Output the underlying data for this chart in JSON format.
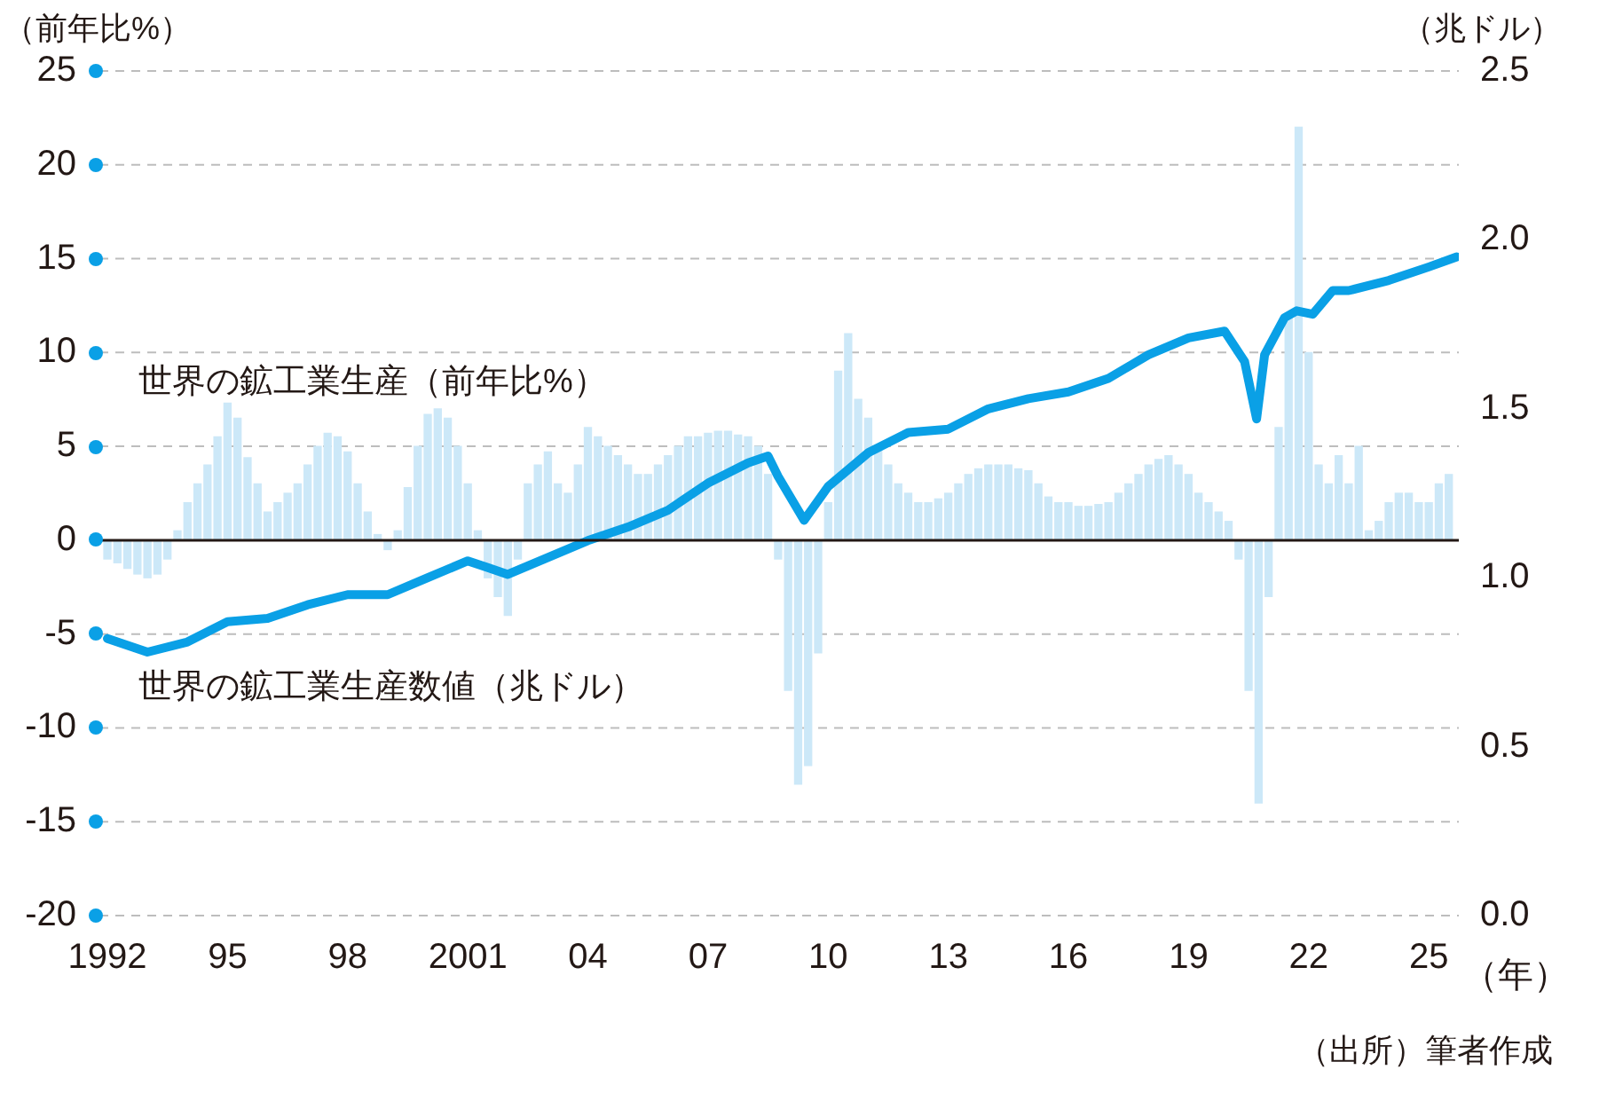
{
  "chart_data": {
    "type": "bar",
    "xlabel": "（年）",
    "ylabel": "（前年比%）",
    "y2label": "（兆ドル）",
    "annotations": [
      "（出所）筆者作成"
    ],
    "xlim": [
      1991.8,
      2025.75
    ],
    "xticks": [
      {
        "value": 1992,
        "label": "1992"
      },
      {
        "value": 1995,
        "label": "95"
      },
      {
        "value": 1998,
        "label": "98"
      },
      {
        "value": 2001,
        "label": "2001"
      },
      {
        "value": 2004,
        "label": "04"
      },
      {
        "value": 2007,
        "label": "07"
      },
      {
        "value": 2010,
        "label": "10"
      },
      {
        "value": 2013,
        "label": "13"
      },
      {
        "value": 2016,
        "label": "16"
      },
      {
        "value": 2019,
        "label": "19"
      },
      {
        "value": 2022,
        "label": "22"
      },
      {
        "value": 2025,
        "label": "25"
      }
    ],
    "ylim": [
      -20,
      25
    ],
    "yticks": [
      -20,
      -15,
      -10,
      -5,
      0,
      5,
      10,
      15,
      20,
      25
    ],
    "y2lim": [
      0,
      2.5
    ],
    "y2ticks": [
      {
        "value": 0,
        "label": "0.0"
      },
      {
        "value": 0.5,
        "label": "0.5"
      },
      {
        "value": 1,
        "label": "1.0"
      },
      {
        "value": 1.5,
        "label": "1.5"
      },
      {
        "value": 2,
        "label": "2.0"
      },
      {
        "value": 2.5,
        "label": "2.5"
      }
    ],
    "grid": "y",
    "ref_lines": [
      {
        "axis": "y",
        "value": 0,
        "color": "#231815"
      }
    ],
    "series": [
      {
        "name": "世界の鉱工業生産（前年比%）",
        "color": "#cce8f8",
        "x": [
          1992,
          1992.25,
          1992.5,
          1992.75,
          1993,
          1993.25,
          1993.5,
          1993.75,
          1994,
          1994.25,
          1994.5,
          1994.75,
          1995,
          1995.25,
          1995.5,
          1995.75,
          1996,
          1996.25,
          1996.5,
          1996.75,
          1997,
          1997.25,
          1997.5,
          1997.75,
          1998,
          1998.25,
          1998.5,
          1998.75,
          1999,
          1999.25,
          1999.5,
          1999.75,
          2000,
          2000.25,
          2000.5,
          2000.75,
          2001,
          2001.25,
          2001.5,
          2001.75,
          2002,
          2002.25,
          2002.5,
          2002.75,
          2003,
          2003.25,
          2003.5,
          2003.75,
          2004,
          2004.25,
          2004.5,
          2004.75,
          2005,
          2005.25,
          2005.5,
          2005.75,
          2006,
          2006.25,
          2006.5,
          2006.75,
          2007,
          2007.25,
          2007.5,
          2007.75,
          2008,
          2008.25,
          2008.5,
          2008.75,
          2009,
          2009.25,
          2009.5,
          2009.75,
          2010,
          2010.25,
          2010.5,
          2010.75,
          2011,
          2011.25,
          2011.5,
          2011.75,
          2012,
          2012.25,
          2012.5,
          2012.75,
          2013,
          2013.25,
          2013.5,
          2013.75,
          2014,
          2014.25,
          2014.5,
          2014.75,
          2015,
          2015.25,
          2015.5,
          2015.75,
          2016,
          2016.25,
          2016.5,
          2016.75,
          2017,
          2017.25,
          2017.5,
          2017.75,
          2018,
          2018.25,
          2018.5,
          2018.75,
          2019,
          2019.25,
          2019.5,
          2019.75,
          2020,
          2020.25,
          2020.5,
          2020.75,
          2021,
          2021.25,
          2021.5,
          2021.75,
          2022,
          2022.25,
          2022.5,
          2022.75,
          2023,
          2023.25,
          2023.5,
          2023.75,
          2024,
          2024.25,
          2024.5,
          2024.75,
          2025,
          2025.25,
          2025.5
        ],
        "values": [
          -1,
          -1.2,
          -1.5,
          -1.8,
          -2,
          -1.8,
          -1,
          0.5,
          2,
          3,
          4,
          5.5,
          7.3,
          6.5,
          4.4,
          3,
          1.5,
          2,
          2.5,
          3,
          4,
          5,
          5.7,
          5.5,
          4.7,
          3,
          1.5,
          0.3,
          -0.5,
          0.5,
          2.8,
          5,
          6.7,
          7,
          6.5,
          5,
          3,
          0.5,
          -2,
          -3,
          -4,
          -1,
          3,
          4,
          4.7,
          3,
          2.5,
          4,
          6,
          5.5,
          5,
          4.5,
          4,
          3.5,
          3.5,
          4,
          4.5,
          5,
          5.5,
          5.5,
          5.7,
          5.8,
          5.8,
          5.6,
          5.5,
          5,
          3.5,
          -1,
          -8,
          -13,
          -12,
          -6,
          2,
          9,
          11,
          7.5,
          6.5,
          5,
          4,
          3,
          2.5,
          2,
          2,
          2.2,
          2.5,
          3,
          3.5,
          3.8,
          4,
          4,
          4,
          3.8,
          3.7,
          3,
          2.3,
          2,
          2,
          1.8,
          1.8,
          1.9,
          2,
          2.5,
          3,
          3.5,
          4,
          4.3,
          4.5,
          4,
          3.5,
          2.5,
          2,
          1.5,
          1,
          -1,
          -8,
          -14,
          -3,
          6,
          12,
          22,
          10,
          4,
          3,
          4.5,
          3,
          5,
          0.5,
          1,
          2,
          2.5,
          2.5,
          2,
          2,
          3,
          3.5
        ]
      },
      {
        "name": "世界の鉱工業生産数値（兆ドル）",
        "type": "line",
        "axis": "y2",
        "color": "#0aa0e6",
        "x": [
          1992,
          1993,
          1994,
          1995,
          1996,
          1997,
          1998,
          1999,
          2000,
          2001,
          2001.5,
          2002,
          2003,
          2004,
          2005,
          2006,
          2007,
          2008,
          2008.5,
          2008.75,
          2009.4,
          2010,
          2011,
          2012,
          2013,
          2014,
          2015,
          2016,
          2017,
          2018,
          2019,
          2019.9,
          2020.4,
          2020.7,
          2020.9,
          2021.4,
          2021.7,
          2022.1,
          2022.6,
          2023,
          2024,
          2025,
          2025.7
        ],
        "values": [
          0.82,
          0.78,
          0.81,
          0.87,
          0.88,
          0.92,
          0.95,
          0.95,
          1.0,
          1.05,
          1.03,
          1.01,
          1.06,
          1.11,
          1.15,
          1.2,
          1.28,
          1.34,
          1.36,
          1.3,
          1.17,
          1.27,
          1.37,
          1.43,
          1.44,
          1.5,
          1.53,
          1.55,
          1.59,
          1.66,
          1.71,
          1.73,
          1.64,
          1.47,
          1.66,
          1.77,
          1.79,
          1.78,
          1.85,
          1.85,
          1.88,
          1.92,
          1.95
        ]
      }
    ]
  }
}
